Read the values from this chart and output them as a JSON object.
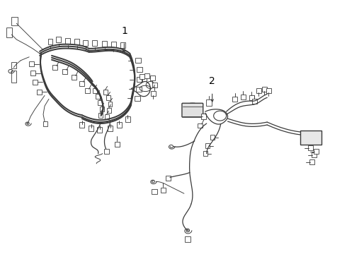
{
  "background_color": "#ffffff",
  "line_color": "#3a3a3a",
  "label_color": "#000000",
  "label1": "1",
  "label2": "2",
  "figsize": [
    4.9,
    3.6
  ],
  "dpi": 100,
  "lw_bundle": 1.4,
  "lw_wire": 0.9,
  "lw_thin": 0.65,
  "connector_size": 0.009
}
